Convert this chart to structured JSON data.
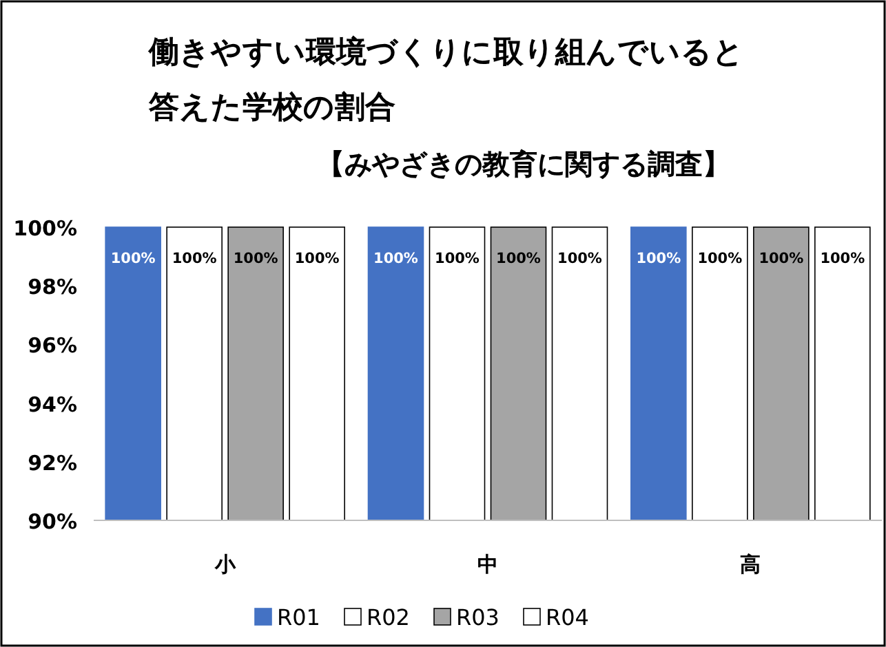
{
  "chart_data": {
    "type": "bar",
    "title": "働きやすい環境づくりに取り組んでいると答えた学校の割合",
    "subtitle": "【みやざきの教育に関する調査】",
    "categories": [
      "小",
      "中",
      "高"
    ],
    "series": [
      {
        "name": "R01",
        "color": "#4472c4",
        "values": [
          100,
          100,
          100
        ],
        "value_labels": [
          "100%",
          "100%",
          "100%"
        ]
      },
      {
        "name": "R02",
        "color": "#ffffff",
        "values": [
          100,
          100,
          100
        ],
        "value_labels": [
          "100%",
          "100%",
          "100%"
        ]
      },
      {
        "name": "R03",
        "color": "#a5a5a5",
        "values": [
          100,
          100,
          100
        ],
        "value_labels": [
          "100%",
          "100%",
          "100%"
        ]
      },
      {
        "name": "R04",
        "color": "#ffffff",
        "values": [
          100,
          100,
          100
        ],
        "value_labels": [
          "100%",
          "100%",
          "100%"
        ]
      }
    ],
    "ylim": [
      90,
      100
    ],
    "yticks": [
      {
        "value": 90,
        "label": "90%"
      },
      {
        "value": 92,
        "label": "92%"
      },
      {
        "value": 94,
        "label": "94%"
      },
      {
        "value": 96,
        "label": "96%"
      },
      {
        "value": 98,
        "label": "98%"
      },
      {
        "value": 100,
        "label": "100%"
      }
    ],
    "grid": false,
    "legend": "bottom"
  }
}
